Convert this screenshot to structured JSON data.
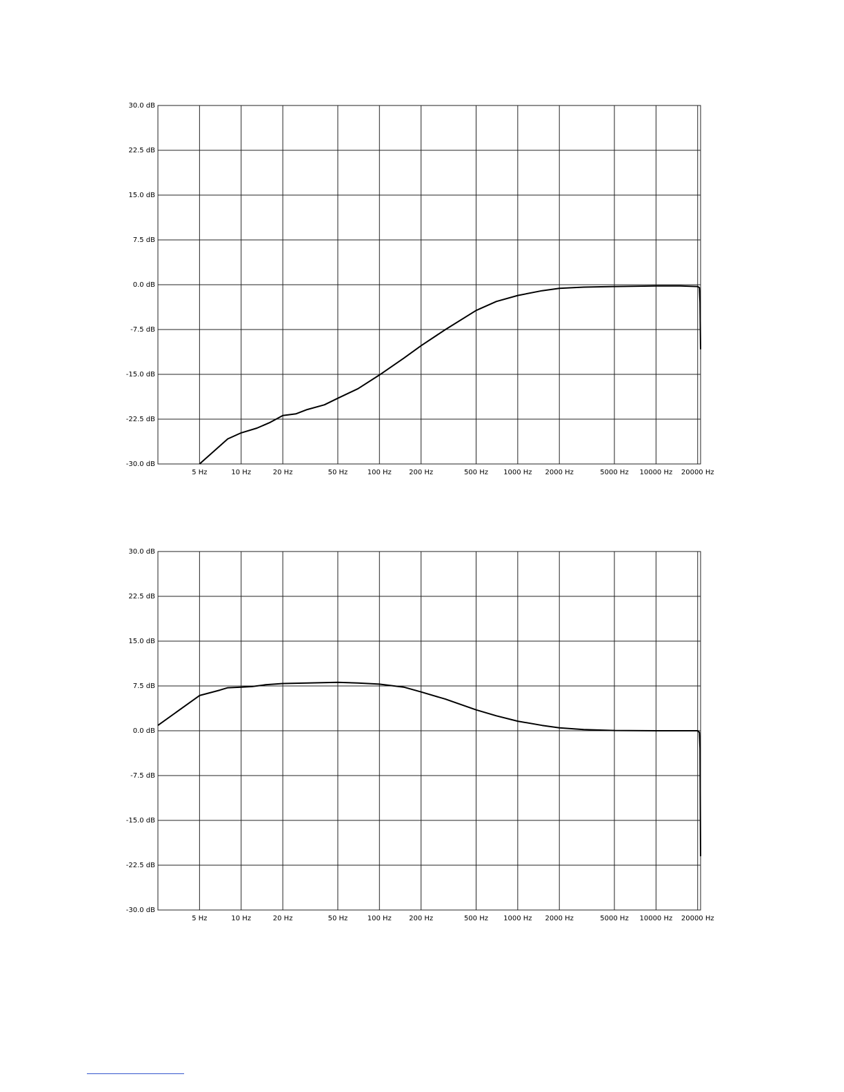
{
  "chart_data": [
    {
      "type": "line",
      "x_scale": "log",
      "xlim": [
        2.5,
        21000
      ],
      "ylim": [
        -30,
        30
      ],
      "grid": true,
      "y_ticks": [
        30,
        22.5,
        15,
        7.5,
        0,
        -7.5,
        -15,
        -22.5,
        -30
      ],
      "y_tick_labels": [
        "30.0 dB",
        "22.5 dB",
        "15.0 dB",
        "7.5 dB",
        "0.0 dB",
        "-7.5 dB",
        "-15.0 dB",
        "-22.5 dB",
        "-30.0 dB"
      ],
      "x_ticks": [
        5,
        10,
        20,
        50,
        100,
        200,
        500,
        1000,
        2000,
        5000,
        10000,
        20000
      ],
      "x_tick_labels": [
        "5 Hz",
        "10 Hz",
        "20 Hz",
        "50 Hz",
        "100 Hz",
        "200 Hz",
        "500 Hz",
        "1000 Hz",
        "2000 Hz",
        "5000 Hz",
        "10000 Hz",
        "20000 Hz"
      ],
      "series": [
        {
          "color": "#000000",
          "x": [
            5,
            8,
            10,
            13,
            16,
            20,
            25,
            30,
            40,
            50,
            70,
            100,
            150,
            200,
            300,
            500,
            700,
            1000,
            1500,
            2000,
            3000,
            5000,
            10000,
            15000,
            20000,
            20600,
            20800,
            21000
          ],
          "y": [
            -30,
            -25.8,
            -24.8,
            -24,
            -23.1,
            -21.9,
            -21.6,
            -20.9,
            -20.1,
            -19,
            -17.4,
            -15.1,
            -12.3,
            -10.2,
            -7.5,
            -4.3,
            -2.8,
            -1.8,
            -1.0,
            -0.6,
            -0.4,
            -0.3,
            -0.2,
            -0.2,
            -0.3,
            -0.5,
            -3,
            -10.8
          ]
        }
      ]
    },
    {
      "type": "line",
      "x_scale": "log",
      "xlim": [
        2.5,
        21000
      ],
      "ylim": [
        -30,
        30
      ],
      "grid": true,
      "y_ticks": [
        30,
        22.5,
        15,
        7.5,
        0,
        -7.5,
        -15,
        -22.5,
        -30
      ],
      "y_tick_labels": [
        "30.0 dB",
        "22.5 dB",
        "15.0 dB",
        "7.5 dB",
        "0.0 dB",
        "-7.5 dB",
        "-15.0 dB",
        "-22.5 dB",
        "-30.0 dB"
      ],
      "x_ticks": [
        5,
        10,
        20,
        50,
        100,
        200,
        500,
        1000,
        2000,
        5000,
        10000,
        20000
      ],
      "x_tick_labels": [
        "5 Hz",
        "10 Hz",
        "20 Hz",
        "50 Hz",
        "100 Hz",
        "200 Hz",
        "500 Hz",
        "1000 Hz",
        "2000 Hz",
        "5000 Hz",
        "10000 Hz",
        "20000 Hz"
      ],
      "series": [
        {
          "color": "#000000",
          "x": [
            2.5,
            5,
            7,
            8,
            10,
            12,
            15,
            20,
            30,
            50,
            70,
            100,
            150,
            200,
            300,
            500,
            700,
            1000,
            1500,
            2000,
            3000,
            5000,
            10000,
            15000,
            20000,
            20600,
            20800,
            21000
          ],
          "y": [
            0.9,
            5.9,
            6.8,
            7.2,
            7.3,
            7.4,
            7.7,
            7.9,
            8.0,
            8.1,
            8.0,
            7.8,
            7.3,
            6.5,
            5.3,
            3.5,
            2.5,
            1.6,
            0.9,
            0.5,
            0.2,
            0.05,
            0.0,
            0.0,
            0.0,
            -0.3,
            -3,
            -21
          ]
        }
      ]
    }
  ]
}
